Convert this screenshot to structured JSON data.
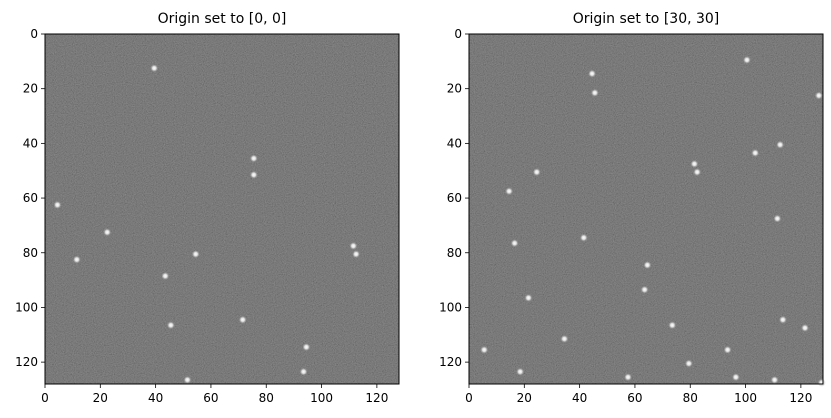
{
  "chart_data": [
    {
      "type": "heatmap",
      "title": "Origin set to [0, 0]",
      "xlabel": "",
      "ylabel": "",
      "xlim": [
        0,
        128
      ],
      "ylim": [
        128,
        0
      ],
      "xticks": [
        0,
        20,
        40,
        60,
        80,
        100,
        120
      ],
      "yticks": [
        0,
        20,
        40,
        60,
        80,
        100,
        120
      ],
      "grid": false,
      "colormap": "gray",
      "background_color": "#2a2a2a",
      "points": [
        {
          "x": 39,
          "y": 12
        },
        {
          "x": 75,
          "y": 45
        },
        {
          "x": 75,
          "y": 51
        },
        {
          "x": 4,
          "y": 62
        },
        {
          "x": 22,
          "y": 72
        },
        {
          "x": 11,
          "y": 82
        },
        {
          "x": 111,
          "y": 77
        },
        {
          "x": 112,
          "y": 80
        },
        {
          "x": 54,
          "y": 80
        },
        {
          "x": 43,
          "y": 88
        },
        {
          "x": 45,
          "y": 106
        },
        {
          "x": 71,
          "y": 104
        },
        {
          "x": 94,
          "y": 114
        },
        {
          "x": 93,
          "y": 123
        },
        {
          "x": 51,
          "y": 126
        }
      ]
    },
    {
      "type": "heatmap",
      "title": "Origin set to [30, 30]",
      "xlabel": "",
      "ylabel": "",
      "xlim": [
        0,
        128
      ],
      "ylim": [
        128,
        0
      ],
      "xticks": [
        0,
        20,
        40,
        60,
        80,
        100,
        120
      ],
      "yticks": [
        0,
        20,
        40,
        60,
        80,
        100,
        120
      ],
      "grid": false,
      "colormap": "gray",
      "background_color": "#2a2a2a",
      "points": [
        {
          "x": 100,
          "y": 9
        },
        {
          "x": 44,
          "y": 14
        },
        {
          "x": 45,
          "y": 21
        },
        {
          "x": 126,
          "y": 22
        },
        {
          "x": 112,
          "y": 40
        },
        {
          "x": 103,
          "y": 43
        },
        {
          "x": 81,
          "y": 47
        },
        {
          "x": 82,
          "y": 50
        },
        {
          "x": 24,
          "y": 50
        },
        {
          "x": 14,
          "y": 57
        },
        {
          "x": 111,
          "y": 67
        },
        {
          "x": 41,
          "y": 74
        },
        {
          "x": 16,
          "y": 76
        },
        {
          "x": 64,
          "y": 84
        },
        {
          "x": 63,
          "y": 93
        },
        {
          "x": 21,
          "y": 96
        },
        {
          "x": 73,
          "y": 106
        },
        {
          "x": 113,
          "y": 104
        },
        {
          "x": 121,
          "y": 107
        },
        {
          "x": 34,
          "y": 111
        },
        {
          "x": 5,
          "y": 115
        },
        {
          "x": 93,
          "y": 115
        },
        {
          "x": 79,
          "y": 120
        },
        {
          "x": 18,
          "y": 123
        },
        {
          "x": 57,
          "y": 125
        },
        {
          "x": 96,
          "y": 125
        },
        {
          "x": 110,
          "y": 126
        },
        {
          "x": 127,
          "y": 127
        }
      ]
    }
  ]
}
